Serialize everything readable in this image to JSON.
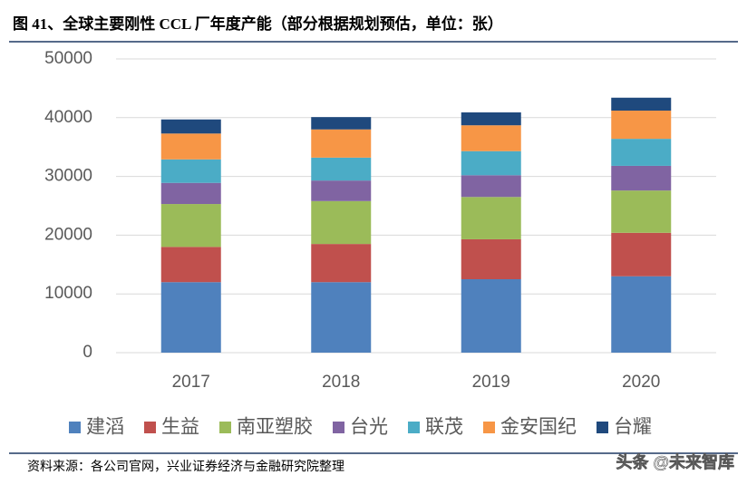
{
  "chart_data": {
    "type": "stacked_bar",
    "title": "图 41、全球主要刚性 CCL 厂年度产能（部分根据规划预估，单位：张）",
    "categories": [
      "2017",
      "2018",
      "2019",
      "2020"
    ],
    "series": [
      {
        "name": "建滔",
        "color": "#4f81bd",
        "values": [
          12000,
          12000,
          12500,
          13000
        ]
      },
      {
        "name": "生益",
        "color": "#c0504d",
        "values": [
          6000,
          6500,
          6800,
          7400
        ]
      },
      {
        "name": "南亚塑胶",
        "color": "#9bbb59",
        "values": [
          7300,
          7300,
          7200,
          7200
        ]
      },
      {
        "name": "台光",
        "color": "#8064a2",
        "values": [
          3600,
          3500,
          3700,
          4200
        ]
      },
      {
        "name": "联茂",
        "color": "#4bacc6",
        "values": [
          4000,
          3900,
          4100,
          4600
        ]
      },
      {
        "name": "金安国纪",
        "color": "#f79646",
        "values": [
          4400,
          4800,
          4400,
          4800
        ]
      },
      {
        "name": "台耀",
        "color": "#1f497d",
        "values": [
          2400,
          2100,
          2200,
          2200
        ]
      }
    ],
    "ylim": [
      0,
      50000
    ],
    "yticks": [
      0,
      10000,
      20000,
      30000,
      40000,
      50000
    ],
    "grid": true,
    "legend": "bottom",
    "source": "资料来源：各公司官网，兴业证券经济与金融研究院整理",
    "watermark": "头条 @未来智库"
  }
}
